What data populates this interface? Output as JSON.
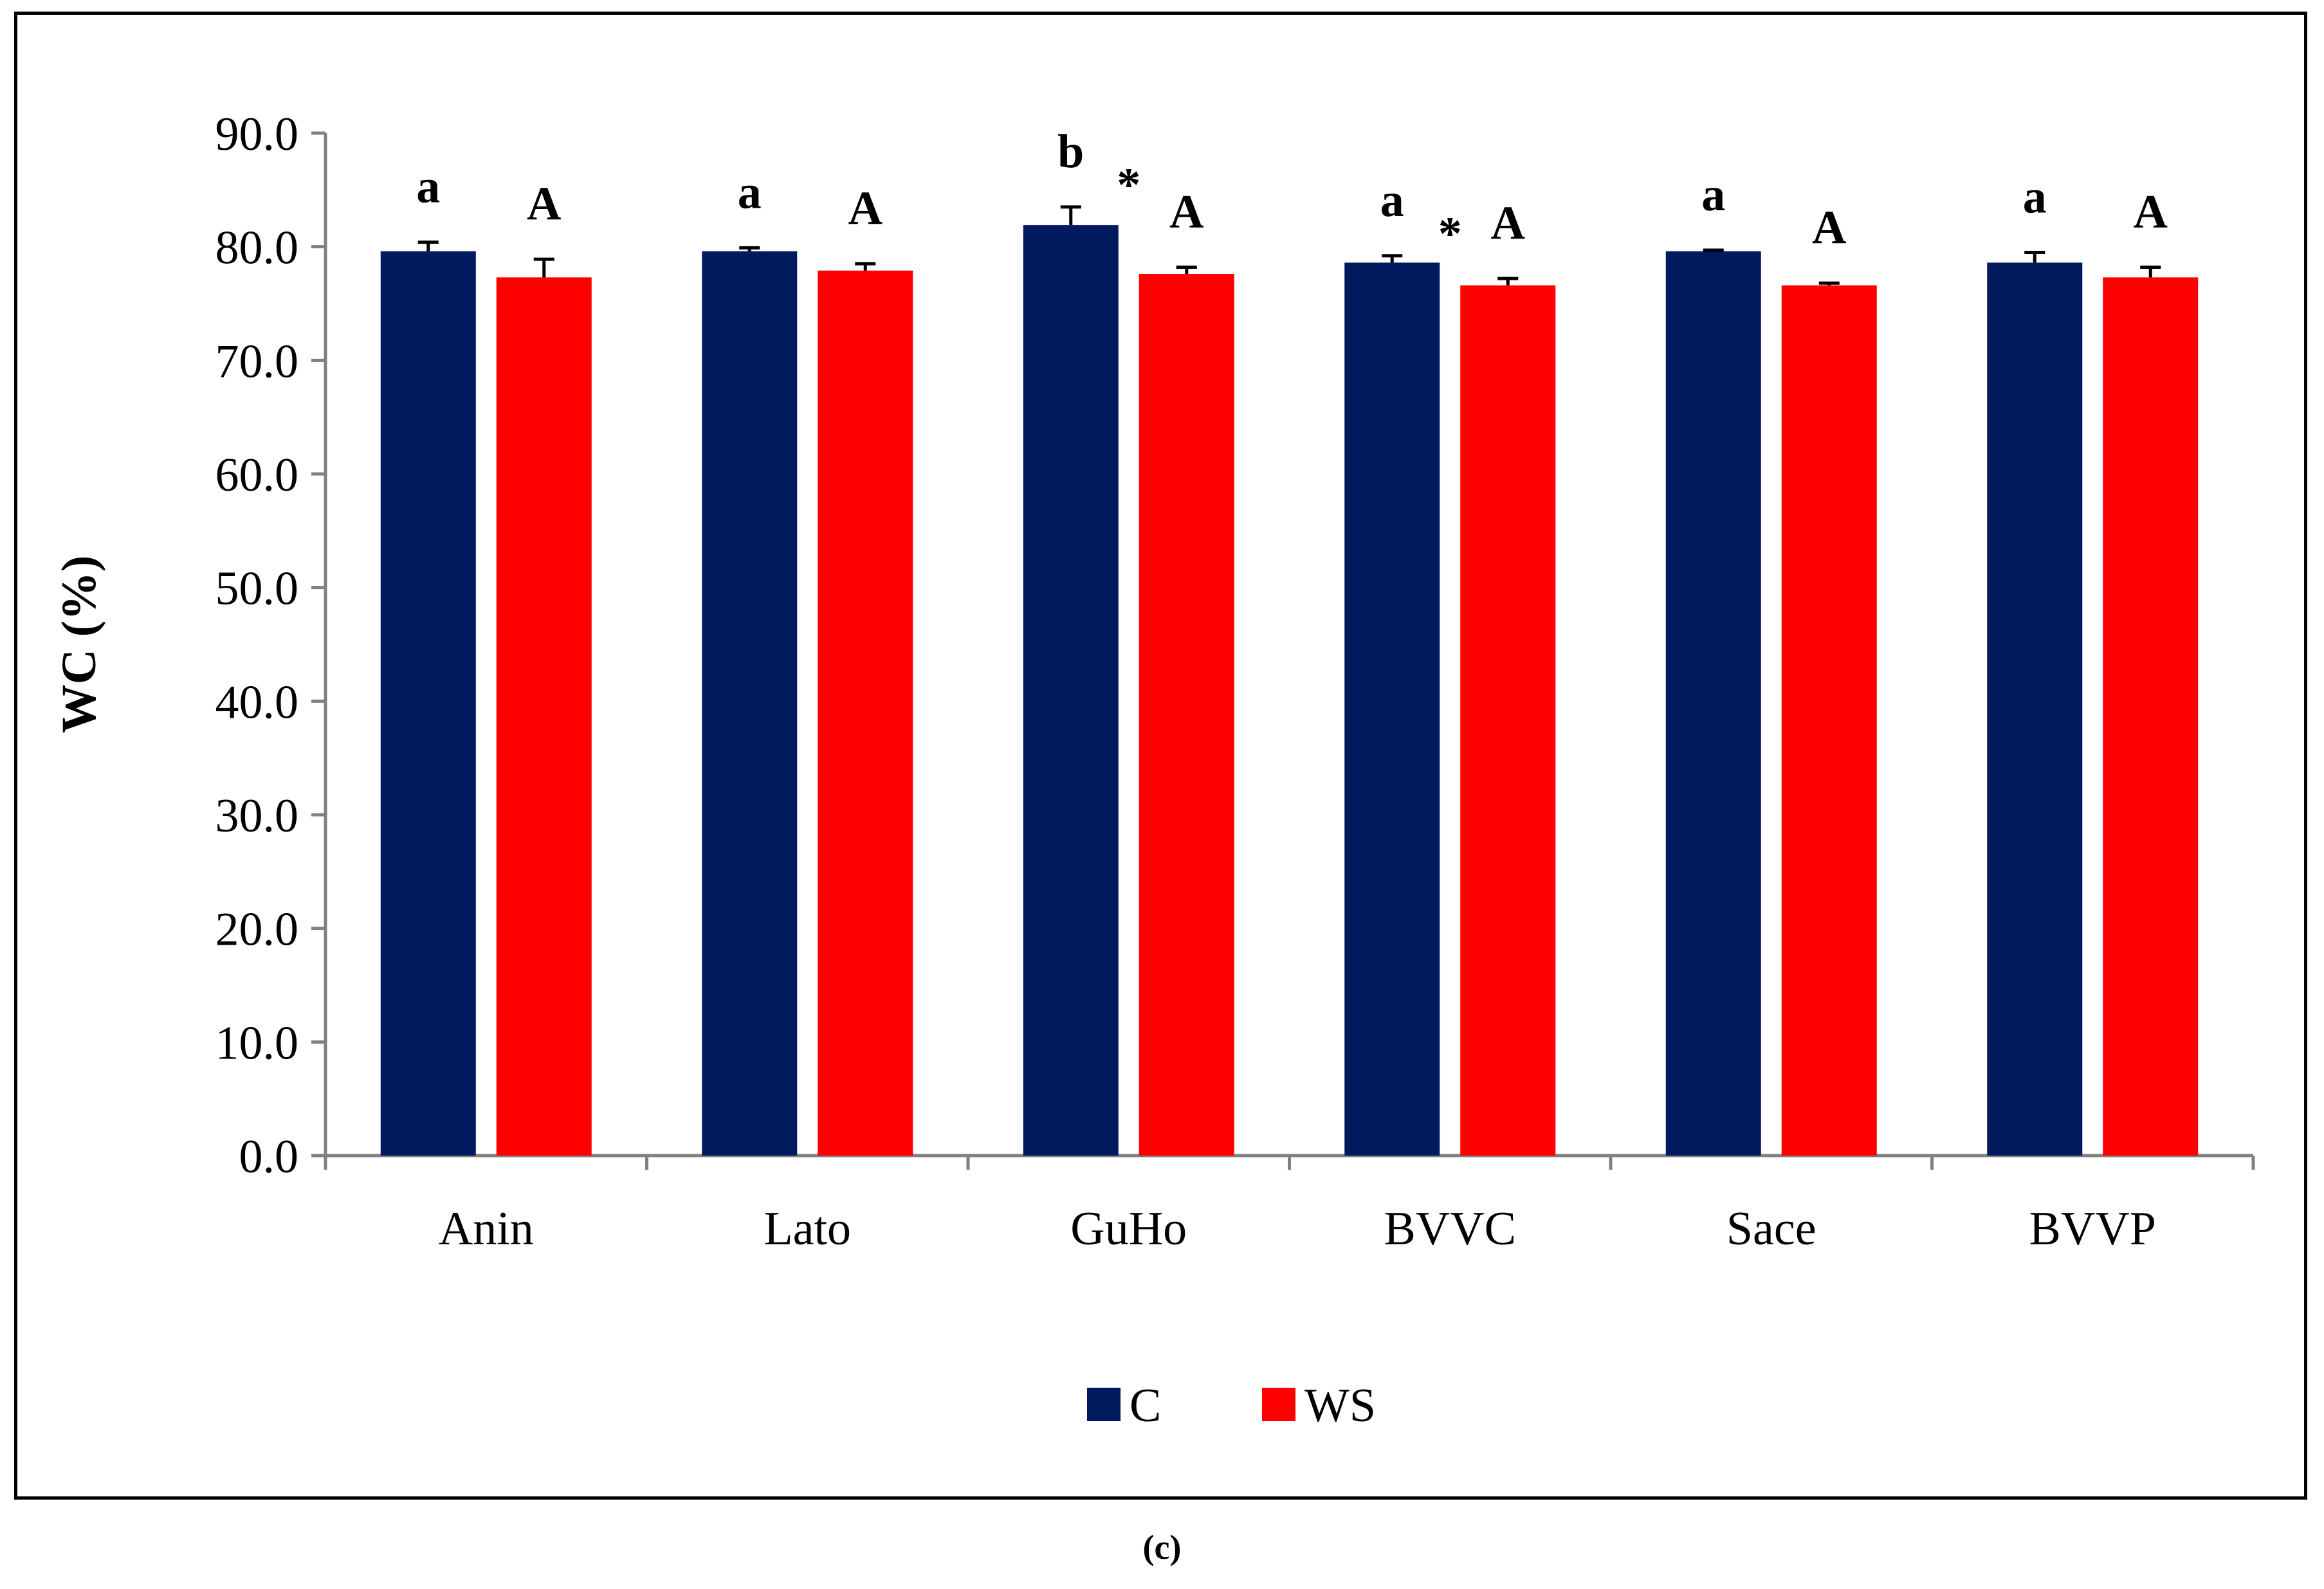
{
  "chart_data": {
    "type": "bar",
    "ylabel": "WC (%)",
    "xlabel": "",
    "ylim": [
      0,
      90
    ],
    "ytick_step": 10,
    "ytick_labels": [
      "0.0",
      "10.0",
      "20.0",
      "30.0",
      "40.0",
      "50.0",
      "60.0",
      "70.0",
      "80.0",
      "90.0"
    ],
    "categories": [
      "Anin",
      "Lato",
      "GuHo",
      "BVVC",
      "Sace",
      "BVVP"
    ],
    "series": [
      {
        "name": "C",
        "color": "#001a5e",
        "values": [
          79.6,
          79.6,
          81.9,
          78.6,
          79.6,
          78.6
        ],
        "errors": [
          0.8,
          0.3,
          1.6,
          0.6,
          0.1,
          0.9
        ],
        "letters": [
          "a",
          "a",
          "b",
          "a",
          "a",
          "a"
        ]
      },
      {
        "name": "WS",
        "color": "#ff0000",
        "values": [
          77.3,
          77.9,
          77.6,
          76.6,
          76.6,
          77.3
        ],
        "errors": [
          1.6,
          0.6,
          0.6,
          0.6,
          0.2,
          0.9
        ],
        "letters": [
          "A",
          "A",
          "A",
          "A",
          "A",
          "A"
        ]
      }
    ],
    "asterisks": [
      {
        "category": "GuHo",
        "text": "*"
      },
      {
        "category": "BVVC",
        "text": "*"
      }
    ],
    "grid": false,
    "legend_position": "bottom-center"
  },
  "panel_label": "(c)"
}
